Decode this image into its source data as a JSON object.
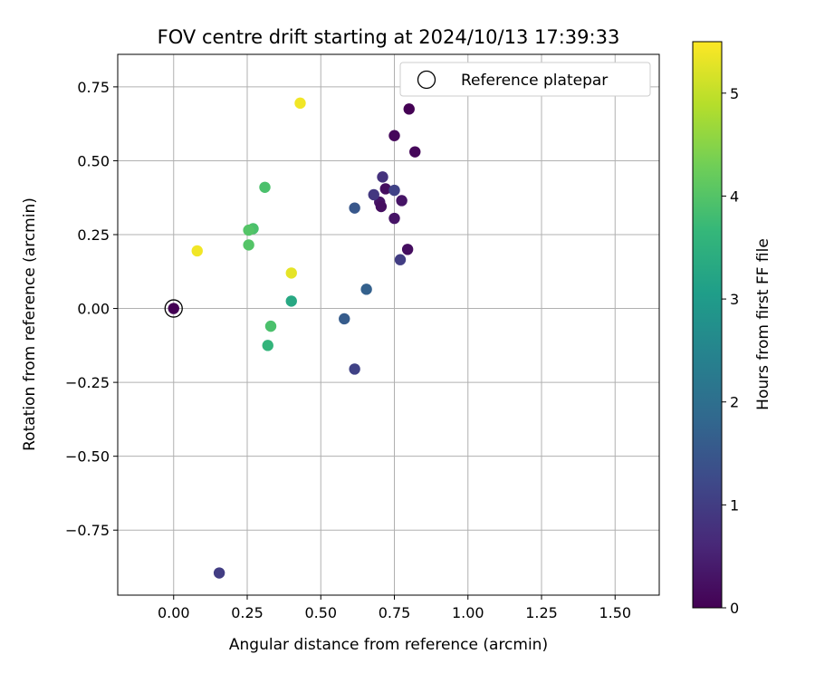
{
  "chart_data": {
    "type": "scatter",
    "title": "FOV centre drift starting at 2024/10/13 17:39:33",
    "xlabel": "Angular distance from reference (arcmin)",
    "ylabel": "Rotation from reference (arcmin)",
    "xlim": [
      -0.19,
      1.65
    ],
    "ylim": [
      -0.97,
      0.86
    ],
    "xticks": [
      0.0,
      0.25,
      0.5,
      0.75,
      1.0,
      1.25,
      1.5
    ],
    "xtick_labels": [
      "0.00",
      "0.25",
      "0.50",
      "0.75",
      "1.00",
      "1.25",
      "1.50"
    ],
    "yticks": [
      0.75,
      0.5,
      0.25,
      0.0,
      -0.25,
      -0.5,
      -0.75
    ],
    "ytick_labels": [
      "0.75",
      "0.50",
      "0.25",
      "0.00",
      "−0.25",
      "−0.50",
      "−0.75"
    ],
    "grid": true,
    "legend": {
      "position": "top-right",
      "entries": [
        "Reference platepar"
      ]
    },
    "reference_point": {
      "x": 0.0,
      "y": 0.0,
      "hours": 0.0
    },
    "colorbar": {
      "label": "Hours from first FF file",
      "range": [
        0,
        5.5
      ],
      "ticks": [
        0,
        1,
        2,
        3,
        4,
        5
      ],
      "tick_labels": [
        "0",
        "1",
        "2",
        "3",
        "4",
        "5"
      ],
      "colormap": "viridis",
      "colors": [
        "#440154",
        "#482878",
        "#3e4989",
        "#31688e",
        "#26828e",
        "#1f9e89",
        "#35b779",
        "#6ece58",
        "#b5de2b",
        "#fde725"
      ]
    },
    "points": [
      {
        "x": 0.0,
        "y": 0.0,
        "hours": 0.0
      },
      {
        "x": 0.8,
        "y": 0.675,
        "hours": 0.0
      },
      {
        "x": 0.75,
        "y": 0.585,
        "hours": 0.1
      },
      {
        "x": 0.82,
        "y": 0.53,
        "hours": 0.1
      },
      {
        "x": 0.72,
        "y": 0.405,
        "hours": 0.2
      },
      {
        "x": 0.775,
        "y": 0.365,
        "hours": 0.3
      },
      {
        "x": 0.7,
        "y": 0.36,
        "hours": 0.3
      },
      {
        "x": 0.705,
        "y": 0.345,
        "hours": 0.2
      },
      {
        "x": 0.75,
        "y": 0.305,
        "hours": 0.3
      },
      {
        "x": 0.795,
        "y": 0.2,
        "hours": 0.2
      },
      {
        "x": 0.71,
        "y": 0.445,
        "hours": 0.8
      },
      {
        "x": 0.68,
        "y": 0.385,
        "hours": 0.9
      },
      {
        "x": 0.75,
        "y": 0.4,
        "hours": 1.1
      },
      {
        "x": 0.77,
        "y": 0.165,
        "hours": 1.0
      },
      {
        "x": 0.615,
        "y": -0.205,
        "hours": 1.1
      },
      {
        "x": 0.155,
        "y": -0.895,
        "hours": 1.0
      },
      {
        "x": 0.615,
        "y": 0.34,
        "hours": 1.5
      },
      {
        "x": 0.655,
        "y": 0.065,
        "hours": 1.7
      },
      {
        "x": 0.58,
        "y": -0.035,
        "hours": 1.6
      },
      {
        "x": 0.4,
        "y": 0.025,
        "hours": 3.3
      },
      {
        "x": 0.32,
        "y": -0.125,
        "hours": 3.6
      },
      {
        "x": 0.33,
        "y": -0.06,
        "hours": 3.9
      },
      {
        "x": 0.31,
        "y": 0.41,
        "hours": 3.9
      },
      {
        "x": 0.27,
        "y": 0.27,
        "hours": 3.9
      },
      {
        "x": 0.255,
        "y": 0.265,
        "hours": 4.0
      },
      {
        "x": 0.255,
        "y": 0.215,
        "hours": 4.0
      },
      {
        "x": 0.43,
        "y": 0.695,
        "hours": 5.4
      },
      {
        "x": 0.4,
        "y": 0.12,
        "hours": 5.3
      },
      {
        "x": 0.08,
        "y": 0.195,
        "hours": 5.4
      }
    ]
  }
}
